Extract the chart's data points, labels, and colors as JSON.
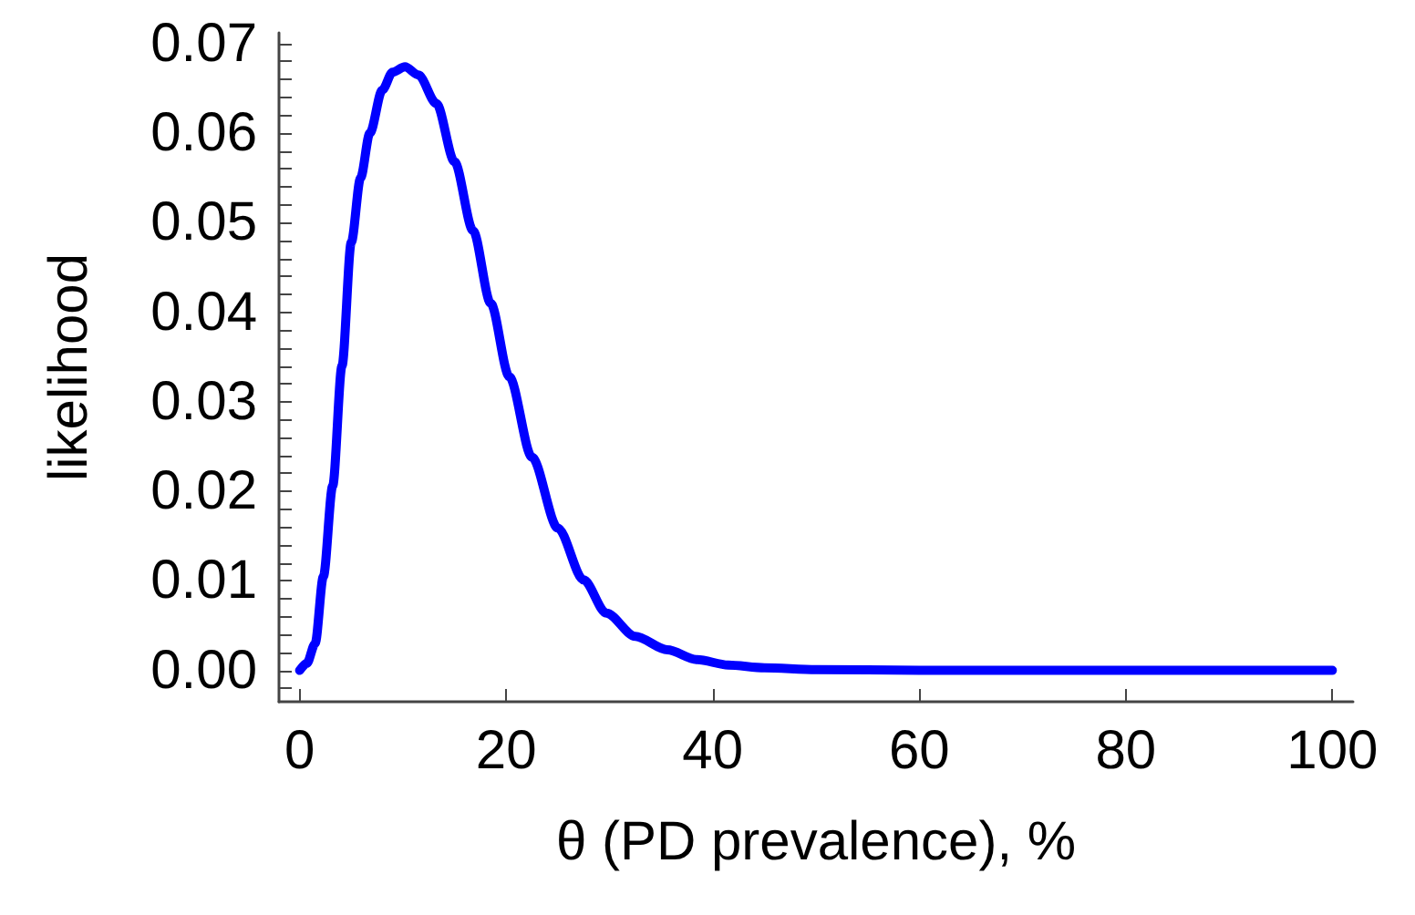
{
  "chart_data": {
    "type": "line",
    "xlabel": "θ (PD prevalence), %",
    "ylabel": "likelihood",
    "series": [
      {
        "color": "#0000ff",
        "x": [
          0,
          0.7,
          1.5,
          2.3,
          3.2,
          4.1,
          5,
          5.9,
          6.8,
          8,
          9,
          10.2,
          11.5,
          13.25,
          15,
          16.8,
          18.5,
          20.3,
          22.5,
          25,
          27.5,
          29.7,
          32.5,
          35.6,
          38.5,
          41.5,
          45,
          50,
          60,
          70,
          80,
          90,
          100
        ],
        "values": [
          0,
          0.0008,
          0.003,
          0.0105,
          0.0206,
          0.034,
          0.0478,
          0.055,
          0.06,
          0.0648,
          0.0668,
          0.0674,
          0.0665,
          0.0633,
          0.0568,
          0.0491,
          0.041,
          0.0328,
          0.0238,
          0.0159,
          0.0101,
          0.0064,
          0.0038,
          0.0023,
          0.0012,
          0.0006,
          0.0003,
          0.0001,
          0,
          0,
          0,
          0,
          0
        ]
      }
    ],
    "xlim": [
      -2,
      102
    ],
    "xticks": [
      0,
      20,
      40,
      60,
      80,
      100
    ],
    "ylim": [
      -0.0035,
      0.0712
    ],
    "yticks": [
      {
        "value": -0.002,
        "label": null
      },
      {
        "value": 0,
        "label": "0.00"
      },
      {
        "value": 0.002,
        "label": null
      },
      {
        "value": 0.004,
        "label": null
      },
      {
        "value": 0.006,
        "label": null
      },
      {
        "value": 0.008,
        "label": null
      },
      {
        "value": 0.01,
        "label": "0.01"
      },
      {
        "value": 0.012,
        "label": null
      },
      {
        "value": 0.014,
        "label": null
      },
      {
        "value": 0.016,
        "label": null
      },
      {
        "value": 0.018,
        "label": null
      },
      {
        "value": 0.02,
        "label": "0.02"
      },
      {
        "value": 0.022,
        "label": null
      },
      {
        "value": 0.024,
        "label": null
      },
      {
        "value": 0.026,
        "label": null
      },
      {
        "value": 0.028,
        "label": null
      },
      {
        "value": 0.03,
        "label": "0.03"
      },
      {
        "value": 0.032,
        "label": null
      },
      {
        "value": 0.034,
        "label": null
      },
      {
        "value": 0.036,
        "label": null
      },
      {
        "value": 0.038,
        "label": null
      },
      {
        "value": 0.04,
        "label": "0.04"
      },
      {
        "value": 0.042,
        "label": null
      },
      {
        "value": 0.044,
        "label": null
      },
      {
        "value": 0.046,
        "label": null
      },
      {
        "value": 0.048,
        "label": null
      },
      {
        "value": 0.05,
        "label": "0.05"
      },
      {
        "value": 0.052,
        "label": null
      },
      {
        "value": 0.054,
        "label": null
      },
      {
        "value": 0.056,
        "label": null
      },
      {
        "value": 0.058,
        "label": null
      },
      {
        "value": 0.06,
        "label": "0.06"
      },
      {
        "value": 0.062,
        "label": null
      },
      {
        "value": 0.064,
        "label": null
      },
      {
        "value": 0.066,
        "label": null
      },
      {
        "value": 0.068,
        "label": null
      },
      {
        "value": 0.07,
        "label": "0.07"
      }
    ],
    "grid": false,
    "marker": "none",
    "line_style": "solid"
  }
}
